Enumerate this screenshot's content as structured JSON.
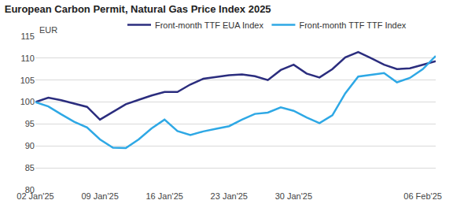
{
  "chart_data": {
    "type": "line",
    "title": "European Carbon Permit, Natural Gas Price Index 2025",
    "y_label": "EUR",
    "categories": [
      "02 Jan'25",
      null,
      null,
      null,
      null,
      "09 Jan'25",
      null,
      null,
      null,
      null,
      "16 Jan'25",
      null,
      null,
      null,
      null,
      "23 Jan'25",
      null,
      null,
      null,
      null,
      "30 Jan'25",
      null,
      null,
      null,
      null,
      null,
      null,
      null,
      null,
      null,
      "06 Feb'25",
      null
    ],
    "series": [
      {
        "name": "Front-month TTF EUA Index",
        "color": "#2b2d7e",
        "line_style": "solid",
        "values": [
          100,
          101,
          100.4,
          99.6,
          98.9,
          96.0,
          97.8,
          99.5,
          100.5,
          101.5,
          102.3,
          102.3,
          104.0,
          105.3,
          105.7,
          106.1,
          106.3,
          105.9,
          105.0,
          107.3,
          108.5,
          106.5,
          105.6,
          107.5,
          110.2,
          111.4,
          110.0,
          108.5,
          107.5,
          107.7,
          108.5,
          109.3
        ]
      },
      {
        "name": "Front-month TTF TTF Index",
        "color": "#2ea8e5",
        "line_style": "solid",
        "values": [
          100,
          99,
          97.2,
          95.5,
          94.2,
          91.5,
          89.6,
          89.5,
          91.5,
          94.0,
          96.0,
          93.4,
          92.5,
          93.3,
          93.9,
          94.5,
          96.0,
          97.3,
          97.6,
          98.8,
          98.0,
          96.5,
          95.2,
          97.0,
          102.0,
          105.8,
          106.2,
          106.6,
          104.5,
          105.5,
          107.5,
          110.5
        ]
      }
    ],
    "ylim": [
      80,
      115
    ],
    "yticks": [
      80,
      85,
      90,
      95,
      100,
      105,
      110,
      115
    ],
    "grid": true,
    "legend": "top"
  }
}
